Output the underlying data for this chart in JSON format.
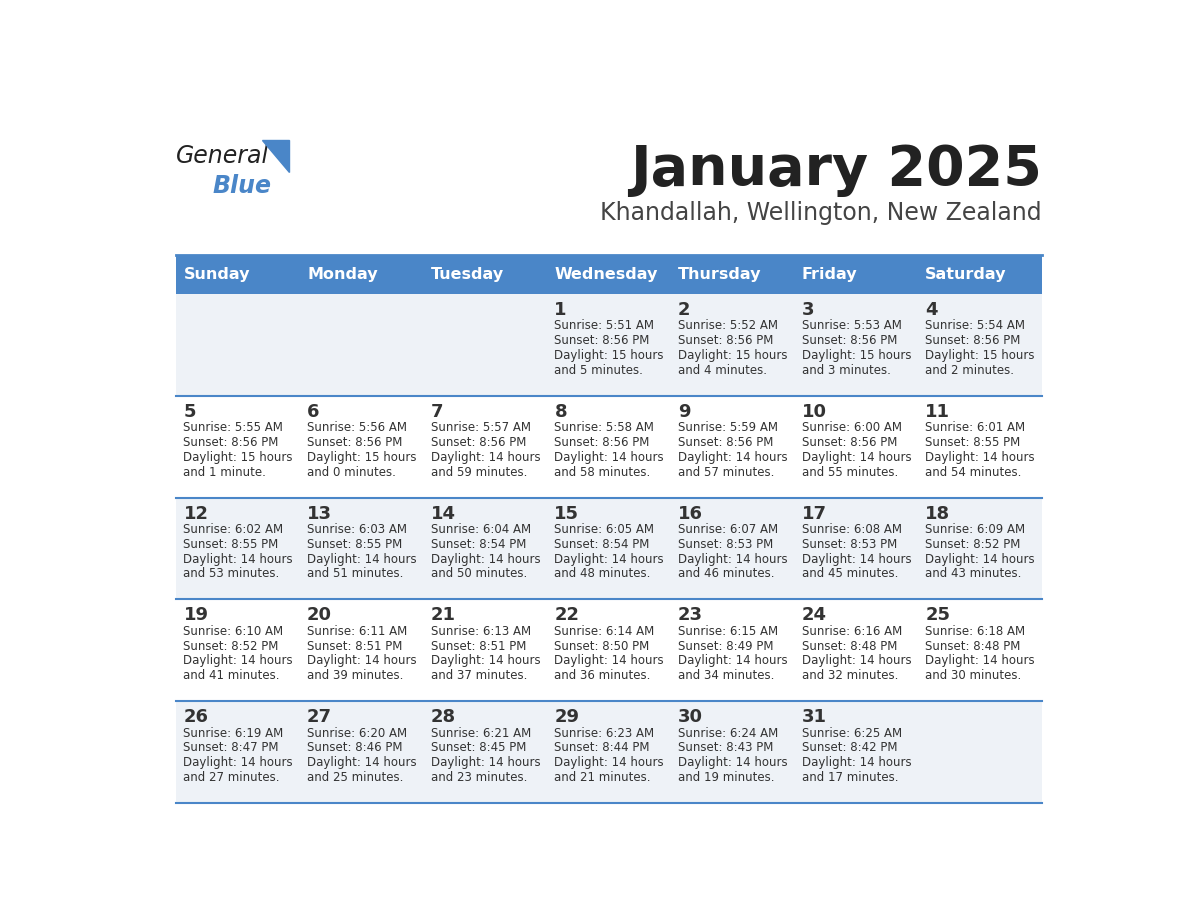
{
  "title": "January 2025",
  "subtitle": "Khandallah, Wellington, New Zealand",
  "header_bg": "#4a86c8",
  "header_text_color": "#ffffff",
  "day_names": [
    "Sunday",
    "Monday",
    "Tuesday",
    "Wednesday",
    "Thursday",
    "Friday",
    "Saturday"
  ],
  "row_bg_even": "#eef2f7",
  "row_bg_odd": "#ffffff",
  "cell_text_color": "#333333",
  "border_color": "#4a86c8",
  "days": [
    {
      "day": 1,
      "col": 3,
      "row": 0,
      "sunrise": "5:51 AM",
      "sunset": "8:56 PM",
      "daylight_line1": "Daylight: 15 hours",
      "daylight_line2": "and 5 minutes."
    },
    {
      "day": 2,
      "col": 4,
      "row": 0,
      "sunrise": "5:52 AM",
      "sunset": "8:56 PM",
      "daylight_line1": "Daylight: 15 hours",
      "daylight_line2": "and 4 minutes."
    },
    {
      "day": 3,
      "col": 5,
      "row": 0,
      "sunrise": "5:53 AM",
      "sunset": "8:56 PM",
      "daylight_line1": "Daylight: 15 hours",
      "daylight_line2": "and 3 minutes."
    },
    {
      "day": 4,
      "col": 6,
      "row": 0,
      "sunrise": "5:54 AM",
      "sunset": "8:56 PM",
      "daylight_line1": "Daylight: 15 hours",
      "daylight_line2": "and 2 minutes."
    },
    {
      "day": 5,
      "col": 0,
      "row": 1,
      "sunrise": "5:55 AM",
      "sunset": "8:56 PM",
      "daylight_line1": "Daylight: 15 hours",
      "daylight_line2": "and 1 minute."
    },
    {
      "day": 6,
      "col": 1,
      "row": 1,
      "sunrise": "5:56 AM",
      "sunset": "8:56 PM",
      "daylight_line1": "Daylight: 15 hours",
      "daylight_line2": "and 0 minutes."
    },
    {
      "day": 7,
      "col": 2,
      "row": 1,
      "sunrise": "5:57 AM",
      "sunset": "8:56 PM",
      "daylight_line1": "Daylight: 14 hours",
      "daylight_line2": "and 59 minutes."
    },
    {
      "day": 8,
      "col": 3,
      "row": 1,
      "sunrise": "5:58 AM",
      "sunset": "8:56 PM",
      "daylight_line1": "Daylight: 14 hours",
      "daylight_line2": "and 58 minutes."
    },
    {
      "day": 9,
      "col": 4,
      "row": 1,
      "sunrise": "5:59 AM",
      "sunset": "8:56 PM",
      "daylight_line1": "Daylight: 14 hours",
      "daylight_line2": "and 57 minutes."
    },
    {
      "day": 10,
      "col": 5,
      "row": 1,
      "sunrise": "6:00 AM",
      "sunset": "8:56 PM",
      "daylight_line1": "Daylight: 14 hours",
      "daylight_line2": "and 55 minutes."
    },
    {
      "day": 11,
      "col": 6,
      "row": 1,
      "sunrise": "6:01 AM",
      "sunset": "8:55 PM",
      "daylight_line1": "Daylight: 14 hours",
      "daylight_line2": "and 54 minutes."
    },
    {
      "day": 12,
      "col": 0,
      "row": 2,
      "sunrise": "6:02 AM",
      "sunset": "8:55 PM",
      "daylight_line1": "Daylight: 14 hours",
      "daylight_line2": "and 53 minutes."
    },
    {
      "day": 13,
      "col": 1,
      "row": 2,
      "sunrise": "6:03 AM",
      "sunset": "8:55 PM",
      "daylight_line1": "Daylight: 14 hours",
      "daylight_line2": "and 51 minutes."
    },
    {
      "day": 14,
      "col": 2,
      "row": 2,
      "sunrise": "6:04 AM",
      "sunset": "8:54 PM",
      "daylight_line1": "Daylight: 14 hours",
      "daylight_line2": "and 50 minutes."
    },
    {
      "day": 15,
      "col": 3,
      "row": 2,
      "sunrise": "6:05 AM",
      "sunset": "8:54 PM",
      "daylight_line1": "Daylight: 14 hours",
      "daylight_line2": "and 48 minutes."
    },
    {
      "day": 16,
      "col": 4,
      "row": 2,
      "sunrise": "6:07 AM",
      "sunset": "8:53 PM",
      "daylight_line1": "Daylight: 14 hours",
      "daylight_line2": "and 46 minutes."
    },
    {
      "day": 17,
      "col": 5,
      "row": 2,
      "sunrise": "6:08 AM",
      "sunset": "8:53 PM",
      "daylight_line1": "Daylight: 14 hours",
      "daylight_line2": "and 45 minutes."
    },
    {
      "day": 18,
      "col": 6,
      "row": 2,
      "sunrise": "6:09 AM",
      "sunset": "8:52 PM",
      "daylight_line1": "Daylight: 14 hours",
      "daylight_line2": "and 43 minutes."
    },
    {
      "day": 19,
      "col": 0,
      "row": 3,
      "sunrise": "6:10 AM",
      "sunset": "8:52 PM",
      "daylight_line1": "Daylight: 14 hours",
      "daylight_line2": "and 41 minutes."
    },
    {
      "day": 20,
      "col": 1,
      "row": 3,
      "sunrise": "6:11 AM",
      "sunset": "8:51 PM",
      "daylight_line1": "Daylight: 14 hours",
      "daylight_line2": "and 39 minutes."
    },
    {
      "day": 21,
      "col": 2,
      "row": 3,
      "sunrise": "6:13 AM",
      "sunset": "8:51 PM",
      "daylight_line1": "Daylight: 14 hours",
      "daylight_line2": "and 37 minutes."
    },
    {
      "day": 22,
      "col": 3,
      "row": 3,
      "sunrise": "6:14 AM",
      "sunset": "8:50 PM",
      "daylight_line1": "Daylight: 14 hours",
      "daylight_line2": "and 36 minutes."
    },
    {
      "day": 23,
      "col": 4,
      "row": 3,
      "sunrise": "6:15 AM",
      "sunset": "8:49 PM",
      "daylight_line1": "Daylight: 14 hours",
      "daylight_line2": "and 34 minutes."
    },
    {
      "day": 24,
      "col": 5,
      "row": 3,
      "sunrise": "6:16 AM",
      "sunset": "8:48 PM",
      "daylight_line1": "Daylight: 14 hours",
      "daylight_line2": "and 32 minutes."
    },
    {
      "day": 25,
      "col": 6,
      "row": 3,
      "sunrise": "6:18 AM",
      "sunset": "8:48 PM",
      "daylight_line1": "Daylight: 14 hours",
      "daylight_line2": "and 30 minutes."
    },
    {
      "day": 26,
      "col": 0,
      "row": 4,
      "sunrise": "6:19 AM",
      "sunset": "8:47 PM",
      "daylight_line1": "Daylight: 14 hours",
      "daylight_line2": "and 27 minutes."
    },
    {
      "day": 27,
      "col": 1,
      "row": 4,
      "sunrise": "6:20 AM",
      "sunset": "8:46 PM",
      "daylight_line1": "Daylight: 14 hours",
      "daylight_line2": "and 25 minutes."
    },
    {
      "day": 28,
      "col": 2,
      "row": 4,
      "sunrise": "6:21 AM",
      "sunset": "8:45 PM",
      "daylight_line1": "Daylight: 14 hours",
      "daylight_line2": "and 23 minutes."
    },
    {
      "day": 29,
      "col": 3,
      "row": 4,
      "sunrise": "6:23 AM",
      "sunset": "8:44 PM",
      "daylight_line1": "Daylight: 14 hours",
      "daylight_line2": "and 21 minutes."
    },
    {
      "day": 30,
      "col": 4,
      "row": 4,
      "sunrise": "6:24 AM",
      "sunset": "8:43 PM",
      "daylight_line1": "Daylight: 14 hours",
      "daylight_line2": "and 19 minutes."
    },
    {
      "day": 31,
      "col": 5,
      "row": 4,
      "sunrise": "6:25 AM",
      "sunset": "8:42 PM",
      "daylight_line1": "Daylight: 14 hours",
      "daylight_line2": "and 17 minutes."
    }
  ],
  "logo_text_general": "General",
  "logo_text_blue": "Blue",
  "logo_color_general": "#222222",
  "logo_color_blue": "#4a86c8"
}
